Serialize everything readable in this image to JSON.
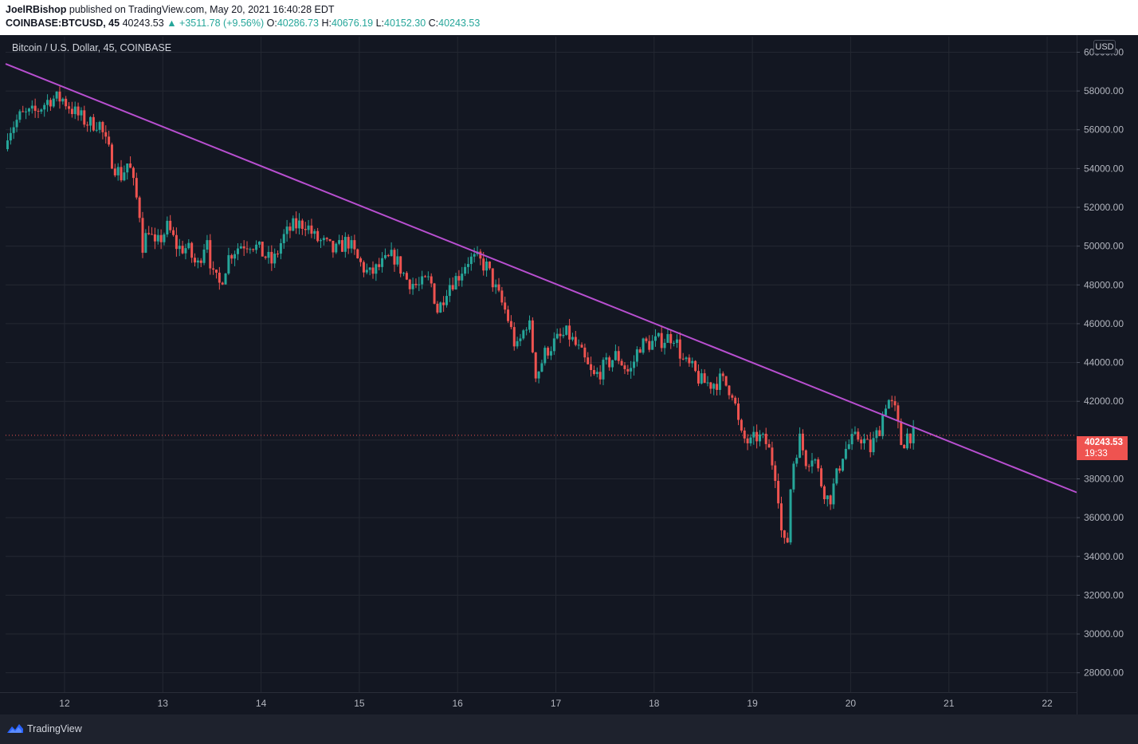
{
  "header": {
    "author": "JoelRBishop",
    "published_text": "published on TradingView.com, May 20, 2021 16:40:28 EDT",
    "symbol": "COINBASE:BTCUSD, 45",
    "last": "40243.53",
    "change": "▲ +3511.78 (+9.56%)",
    "o_label": "O:",
    "o": "40286.73",
    "h_label": "H:",
    "h": "40676.19",
    "l_label": "L:",
    "l": "40152.30",
    "c_label": "C:",
    "c": "40243.53"
  },
  "legend": {
    "title": "Bitcoin / U.S. Dollar, 45, COINBASE"
  },
  "axis": {
    "currency": "USD"
  },
  "price_badge": {
    "price": "40243.53",
    "countdown": "19:33"
  },
  "footer": {
    "brand": "TradingView"
  },
  "colors": {
    "background": "#131722",
    "grid": "#242832",
    "up": "#26a69a",
    "down": "#ef5350",
    "trendline": "#b84fd0",
    "axis_text": "#b2b5be"
  },
  "icons": {
    "logo": "tradingview-cloud-icon"
  },
  "chart_data": {
    "type": "candlestick",
    "title": "Bitcoin / U.S. Dollar, 45, COINBASE",
    "x_ticks": [
      "12",
      "13",
      "14",
      "15",
      "16",
      "17",
      "18",
      "19",
      "20",
      "21",
      "22"
    ],
    "x_tick_values": [
      12,
      13,
      14,
      15,
      16,
      17,
      18,
      19,
      20,
      21,
      22
    ],
    "x_range": [
      11.4,
      22.3
    ],
    "y_ticks": [
      28000,
      30000,
      32000,
      34000,
      36000,
      38000,
      40000,
      42000,
      44000,
      46000,
      48000,
      50000,
      52000,
      54000,
      56000,
      58000,
      60000
    ],
    "y_range": [
      27000,
      60800
    ],
    "grid": true,
    "last_price": 40243.53,
    "price_path": [
      [
        11.42,
        55000,
        55900
      ],
      [
        11.55,
        56200,
        56700
      ],
      [
        11.7,
        56800,
        56900
      ],
      [
        11.85,
        56700,
        57600
      ],
      [
        11.98,
        57800,
        57600
      ],
      [
        12.05,
        57500,
        57200
      ],
      [
        12.12,
        57100,
        56800
      ],
      [
        12.25,
        56700,
        56300
      ],
      [
        12.35,
        56200,
        56400
      ],
      [
        12.42,
        56100,
        55300
      ],
      [
        12.5,
        55200,
        54200
      ],
      [
        12.58,
        54000,
        53600
      ],
      [
        12.65,
        53600,
        54400
      ],
      [
        12.72,
        54200,
        52700
      ],
      [
        12.76,
        52600,
        51900
      ],
      [
        12.8,
        51800,
        49800
      ],
      [
        12.85,
        49900,
        51100
      ],
      [
        12.92,
        51200,
        49900
      ],
      [
        13.05,
        50000,
        51000
      ],
      [
        13.15,
        50700,
        49900
      ],
      [
        13.25,
        49800,
        49900
      ],
      [
        13.35,
        49700,
        48900
      ],
      [
        13.45,
        49000,
        50600
      ],
      [
        13.5,
        50300,
        48500
      ],
      [
        13.58,
        48700,
        48000
      ],
      [
        13.68,
        48100,
        49600
      ],
      [
        13.8,
        49600,
        50100
      ],
      [
        13.9,
        49900,
        50200
      ],
      [
        14.02,
        50200,
        49600
      ],
      [
        14.12,
        49500,
        49100
      ],
      [
        14.22,
        49300,
        50400
      ],
      [
        14.32,
        50400,
        51000
      ],
      [
        14.45,
        51200,
        51200
      ],
      [
        14.55,
        51100,
        50400
      ],
      [
        14.65,
        50500,
        50100
      ],
      [
        14.75,
        50000,
        49700
      ],
      [
        14.88,
        49600,
        50300
      ],
      [
        14.98,
        50200,
        49300
      ],
      [
        15.1,
        49300,
        48500
      ],
      [
        15.22,
        48500,
        49000
      ],
      [
        15.35,
        49000,
        49500
      ],
      [
        15.48,
        49500,
        48300
      ],
      [
        15.6,
        48200,
        47900
      ],
      [
        15.72,
        47800,
        48300
      ],
      [
        15.8,
        48200,
        46600
      ],
      [
        15.9,
        46700,
        48000
      ],
      [
        16.0,
        47900,
        48400
      ],
      [
        16.1,
        48500,
        49300
      ],
      [
        16.2,
        49300,
        49300
      ],
      [
        16.3,
        49200,
        48900
      ],
      [
        16.4,
        48700,
        47600
      ],
      [
        16.5,
        47500,
        46500
      ],
      [
        16.6,
        46600,
        44600
      ],
      [
        16.72,
        44700,
        46300
      ],
      [
        16.8,
        46200,
        43300
      ],
      [
        16.9,
        43300,
        44600
      ],
      [
        17.0,
        44700,
        45100
      ],
      [
        17.12,
        45100,
        45500
      ],
      [
        17.25,
        45400,
        44500
      ],
      [
        17.38,
        44600,
        43200
      ],
      [
        17.5,
        43200,
        43800
      ],
      [
        17.62,
        43800,
        44400
      ],
      [
        17.75,
        44400,
        43400
      ],
      [
        17.85,
        43300,
        44900
      ],
      [
        17.98,
        44900,
        45000
      ],
      [
        18.1,
        45000,
        45200
      ],
      [
        18.2,
        45200,
        45400
      ],
      [
        18.3,
        45300,
        44000
      ],
      [
        18.38,
        44100,
        43700
      ],
      [
        18.48,
        43700,
        43000
      ],
      [
        18.58,
        43000,
        42900
      ],
      [
        18.68,
        42900,
        43100
      ],
      [
        18.8,
        43100,
        42500
      ],
      [
        18.88,
        42500,
        40200
      ],
      [
        18.98,
        40200,
        39800
      ],
      [
        19.05,
        39900,
        40200
      ],
      [
        19.15,
        40200,
        39800
      ],
      [
        19.25,
        39800,
        38000
      ],
      [
        19.3,
        38000,
        35000
      ],
      [
        19.35,
        35000,
        34200
      ],
      [
        19.4,
        34200,
        38500
      ],
      [
        19.48,
        38500,
        40100
      ],
      [
        19.55,
        40100,
        38900
      ],
      [
        19.62,
        38900,
        39300
      ],
      [
        19.7,
        39300,
        37800
      ],
      [
        19.78,
        37700,
        36800
      ],
      [
        19.85,
        36800,
        38000
      ],
      [
        19.92,
        38000,
        39300
      ],
      [
        20.0,
        39400,
        39900
      ],
      [
        20.1,
        39900,
        40200
      ],
      [
        20.2,
        40200,
        39500
      ],
      [
        20.3,
        39500,
        40700
      ],
      [
        20.37,
        40700,
        42200
      ],
      [
        20.45,
        42200,
        41500
      ],
      [
        20.52,
        41500,
        39700
      ],
      [
        20.58,
        39700,
        40300
      ],
      [
        20.65,
        40300,
        40244
      ]
    ],
    "trendline": {
      "start": [
        11.4,
        59400
      ],
      "end": [
        22.3,
        37300
      ],
      "color": "#b84fd0"
    },
    "annotations": []
  }
}
